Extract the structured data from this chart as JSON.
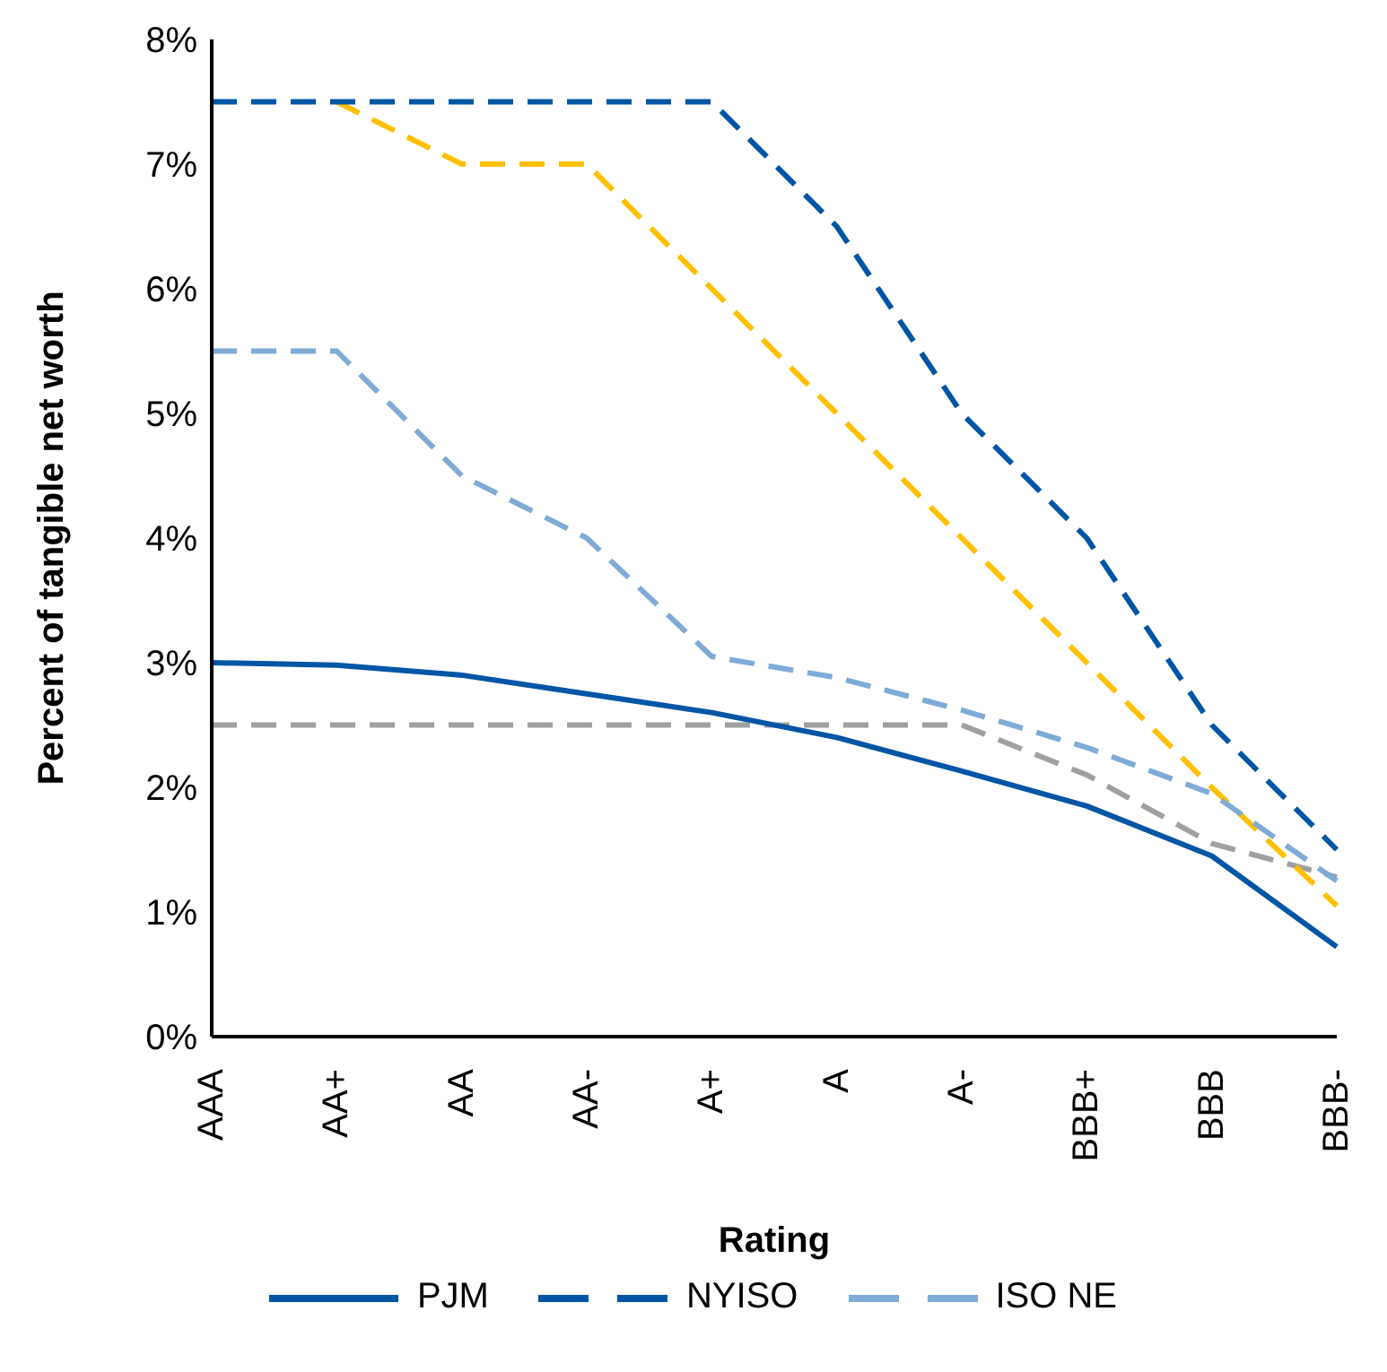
{
  "chart_data": {
    "type": "line",
    "xlabel": "Rating",
    "ylabel": "Percent of tangible net worth",
    "categories": [
      "AAA",
      "AA+",
      "AA",
      "AA-",
      "A+",
      "A",
      "A-",
      "BBB+",
      "BBB",
      "BBB-"
    ],
    "series": [
      {
        "name": "PJM",
        "color": "#0055a5",
        "line_style": "solid",
        "values": [
          3.0,
          2.98,
          2.9,
          2.75,
          2.6,
          2.4,
          2.13,
          1.85,
          1.45,
          0.72
        ]
      },
      {
        "name": "NYISO",
        "color": "#0055a5",
        "line_style": "dashed",
        "values": [
          7.5,
          7.5,
          7.5,
          7.5,
          7.5,
          6.5,
          5.0,
          4.0,
          2.5,
          1.5
        ]
      },
      {
        "name": "ISO NE",
        "color": "#7fabd6",
        "line_style": "dashed",
        "values": [
          5.5,
          5.5,
          4.5,
          4.0,
          3.05,
          2.88,
          2.62,
          2.32,
          1.95,
          1.25
        ]
      },
      {
        "color": "#ffc000",
        "line_style": "dashed",
        "values": [
          null,
          7.5,
          7.0,
          7.0,
          6.0,
          5.0,
          4.0,
          3.0,
          2.0,
          1.05
        ]
      },
      {
        "color": "#a0a0a0",
        "line_style": "dashed",
        "values": [
          2.5,
          2.5,
          2.5,
          2.5,
          2.5,
          2.5,
          2.5,
          2.1,
          1.55,
          1.28
        ]
      }
    ],
    "ylim": [
      0,
      8
    ],
    "yticks": [
      {
        "value": 0,
        "label": "0%"
      },
      {
        "value": 1,
        "label": "1%"
      },
      {
        "value": 2,
        "label": "2%"
      },
      {
        "value": 3,
        "label": "3%"
      },
      {
        "value": 4,
        "label": "4%"
      },
      {
        "value": 5,
        "label": "5%"
      },
      {
        "value": 6,
        "label": "6%"
      },
      {
        "value": 7,
        "label": "7%"
      },
      {
        "value": 8,
        "label": "8%"
      }
    ],
    "grid": false,
    "legend": "bottom",
    "marker": "none"
  }
}
